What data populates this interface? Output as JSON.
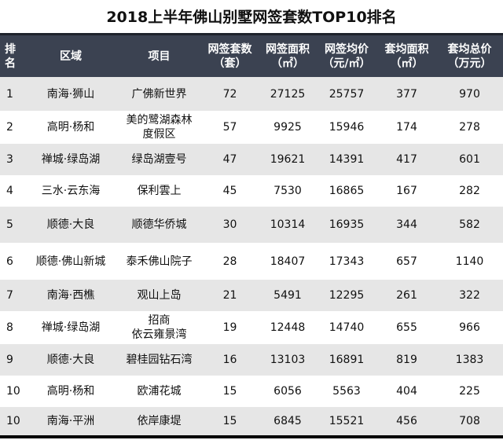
{
  "title": "2018上半年佛山别墅网签套数TOP10排名",
  "headers": [
    [
      "排",
      "名"
    ],
    [
      "区域"
    ],
    [
      "项目"
    ],
    [
      "网签套数",
      "（套）"
    ],
    [
      "网签面积",
      "（㎡）"
    ],
    [
      "网签均价",
      "（元/㎡）"
    ],
    [
      "套均面积",
      "（㎡）"
    ],
    [
      "套均总价",
      "（万元）"
    ]
  ],
  "rows": [
    {
      "rank": "1",
      "area": "南海·狮山",
      "project": [
        "广佛新世界"
      ],
      "units": "72",
      "sign_area": "27125",
      "avg_price": "25757",
      "avg_area": "377",
      "avg_total": "970"
    },
    {
      "rank": "2",
      "area": "高明·杨和",
      "project": [
        "美的鹭湖森林",
        "度假区"
      ],
      "units": "57",
      "sign_area": "9925",
      "avg_price": "15946",
      "avg_area": "174",
      "avg_total": "278"
    },
    {
      "rank": "3",
      "area": "禅城·绿岛湖",
      "project": [
        "绿岛湖壹号"
      ],
      "units": "47",
      "sign_area": "19621",
      "avg_price": "14391",
      "avg_area": "417",
      "avg_total": "601"
    },
    {
      "rank": "4",
      "area": "三水·云东海",
      "project": [
        "保利雲上"
      ],
      "units": "45",
      "sign_area": "7530",
      "avg_price": "16865",
      "avg_area": "167",
      "avg_total": "282"
    },
    {
      "rank": "5",
      "area": "顺德·大良",
      "project": [
        "顺德华侨城"
      ],
      "units": "30",
      "sign_area": "10314",
      "avg_price": "16935",
      "avg_area": "344",
      "avg_total": "582"
    },
    {
      "rank": "6",
      "area": "顺德·佛山新城",
      "project": [
        "泰禾佛山院子"
      ],
      "units": "28",
      "sign_area": "18407",
      "avg_price": "17343",
      "avg_area": "657",
      "avg_total": "1140"
    },
    {
      "rank": "7",
      "area": "南海·西樵",
      "project": [
        "观山上岛"
      ],
      "units": "21",
      "sign_area": "5491",
      "avg_price": "12295",
      "avg_area": "261",
      "avg_total": "322"
    },
    {
      "rank": "8",
      "area": "禅城·绿岛湖",
      "project": [
        "招商",
        "依云雍景湾"
      ],
      "units": "19",
      "sign_area": "12448",
      "avg_price": "14740",
      "avg_area": "655",
      "avg_total": "966"
    },
    {
      "rank": "9",
      "area": "顺德·大良",
      "project": [
        "碧桂园钻石湾"
      ],
      "units": "16",
      "sign_area": "13103",
      "avg_price": "16891",
      "avg_area": "819",
      "avg_total": "1383"
    },
    {
      "rank": "10",
      "area": "高明·杨和",
      "project": [
        "欧浦花城"
      ],
      "units": "15",
      "sign_area": "6056",
      "avg_price": "5563",
      "avg_area": "404",
      "avg_total": "225"
    },
    {
      "rank": "10",
      "area": "南海·平洲",
      "project": [
        "依岸康堤"
      ],
      "units": "15",
      "sign_area": "6845",
      "avg_price": "15521",
      "avg_area": "456",
      "avg_total": "708"
    }
  ],
  "colors": {
    "header_bg": "#3b4251",
    "stripe": "#e6e6e6"
  }
}
